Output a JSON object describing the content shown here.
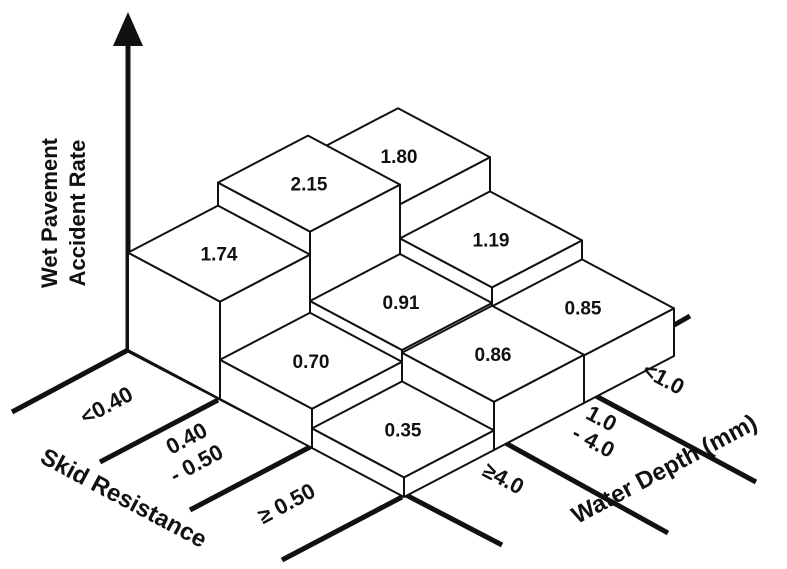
{
  "chart_data": {
    "type": "bar3d",
    "ylabel": [
      "Wet Pavement",
      "Accident Rate"
    ],
    "x_axis_title": "Skid Resistance",
    "z_axis_title": "Water Depth (mm)",
    "skid_resistance": [
      {
        "line1": "<0.40",
        "line2": ""
      },
      {
        "line1": "0.40",
        "line2": "- 0.50"
      },
      {
        "line1": "≥ 0.50",
        "line2": ""
      }
    ],
    "water_depth": [
      {
        "line1": "<1.0",
        "line2": ""
      },
      {
        "line1": "1.0",
        "line2": "- 4.0"
      },
      {
        "line1": "≥4.0",
        "line2": ""
      }
    ],
    "values": [
      [
        2.15,
        1.74,
        0.7
      ],
      [
        1.8,
        0.91,
        0.35
      ],
      [
        1.19,
        0.86,
        0.85
      ]
    ],
    "value_labels": [
      [
        "2.15",
        "1.74",
        "0.70"
      ],
      [
        "1.80",
        "0.91",
        "0.35"
      ],
      [
        "1.19",
        "0.86",
        "0.85"
      ]
    ]
  }
}
